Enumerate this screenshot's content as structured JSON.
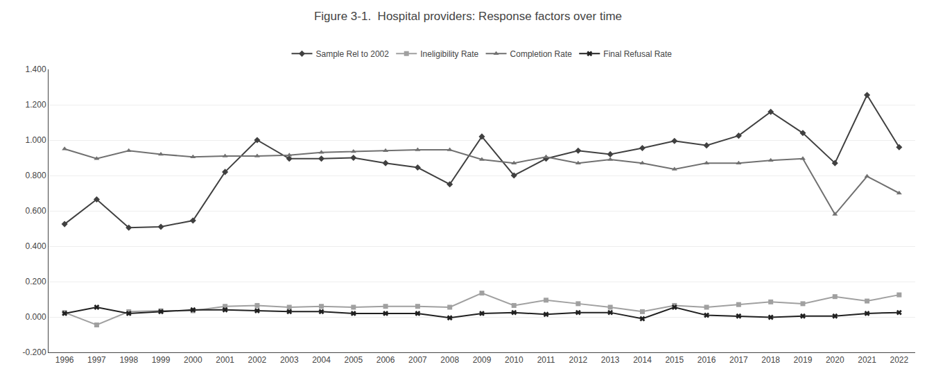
{
  "chart_data": {
    "type": "line",
    "title": "Figure 3-1.  Hospital providers: Response factors over time",
    "x": [
      1996,
      1997,
      1998,
      1999,
      2000,
      2001,
      2002,
      2003,
      2004,
      2005,
      2006,
      2007,
      2008,
      2009,
      2010,
      2011,
      2012,
      2013,
      2014,
      2015,
      2016,
      2017,
      2018,
      2019,
      2020,
      2021,
      2022
    ],
    "series": [
      {
        "name": "Sample Rel to 2002",
        "color": "#404040",
        "marker": "diamond",
        "values": [
          0.525,
          0.665,
          0.505,
          0.51,
          0.545,
          0.82,
          1.0,
          0.895,
          0.895,
          0.9,
          0.87,
          0.845,
          0.75,
          1.02,
          0.8,
          0.895,
          0.94,
          0.92,
          0.955,
          0.995,
          0.97,
          1.025,
          1.16,
          1.04,
          0.87,
          1.255,
          0.96
        ]
      },
      {
        "name": "Ineligibility Rate",
        "color": "#a0a0a0",
        "marker": "square",
        "values": [
          0.025,
          -0.045,
          0.03,
          0.035,
          0.035,
          0.06,
          0.065,
          0.055,
          0.06,
          0.055,
          0.06,
          0.06,
          0.055,
          0.135,
          0.065,
          0.095,
          0.075,
          0.055,
          0.03,
          0.065,
          0.055,
          0.07,
          0.085,
          0.075,
          0.115,
          0.09,
          0.125
        ]
      },
      {
        "name": "Completion Rate",
        "color": "#707070",
        "marker": "triangle-up",
        "values": [
          0.95,
          0.895,
          0.94,
          0.92,
          0.905,
          0.91,
          0.91,
          0.915,
          0.93,
          0.935,
          0.94,
          0.945,
          0.945,
          0.89,
          0.87,
          0.905,
          0.87,
          0.89,
          0.87,
          0.835,
          0.87,
          0.87,
          0.885,
          0.895,
          0.58,
          0.795,
          0.7
        ]
      },
      {
        "name": "Final Refusal Rate",
        "color": "#202020",
        "marker": "x",
        "values": [
          0.02,
          0.055,
          0.02,
          0.03,
          0.04,
          0.04,
          0.035,
          0.03,
          0.03,
          0.02,
          0.02,
          0.02,
          -0.005,
          0.02,
          0.025,
          0.015,
          0.025,
          0.025,
          -0.01,
          0.055,
          0.01,
          0.005,
          -0.002,
          0.005,
          0.005,
          0.02,
          0.025
        ]
      }
    ],
    "xlim": [
      1995.5,
      2022.5
    ],
    "xticks": [
      1996,
      1997,
      1998,
      1999,
      2000,
      2001,
      2002,
      2003,
      2004,
      2005,
      2006,
      2007,
      2008,
      2009,
      2010,
      2011,
      2012,
      2013,
      2014,
      2015,
      2016,
      2017,
      2018,
      2019,
      2020,
      2021,
      2022
    ],
    "ylim": [
      -0.2,
      1.4
    ],
    "yticks": [
      {
        "value": -0.2,
        "label": "-0.200"
      },
      {
        "value": 0,
        "label": "0.000"
      },
      {
        "value": 0.2,
        "label": "0.200"
      },
      {
        "value": 0.4,
        "label": "0.400"
      },
      {
        "value": 0.6,
        "label": "0.600"
      },
      {
        "value": 0.8,
        "label": "0.800"
      },
      {
        "value": 1.0,
        "label": "1.000"
      },
      {
        "value": 1.2,
        "label": "1.200"
      },
      {
        "value": 1.4,
        "label": "1.400"
      }
    ],
    "grid": true,
    "legend": "top"
  }
}
